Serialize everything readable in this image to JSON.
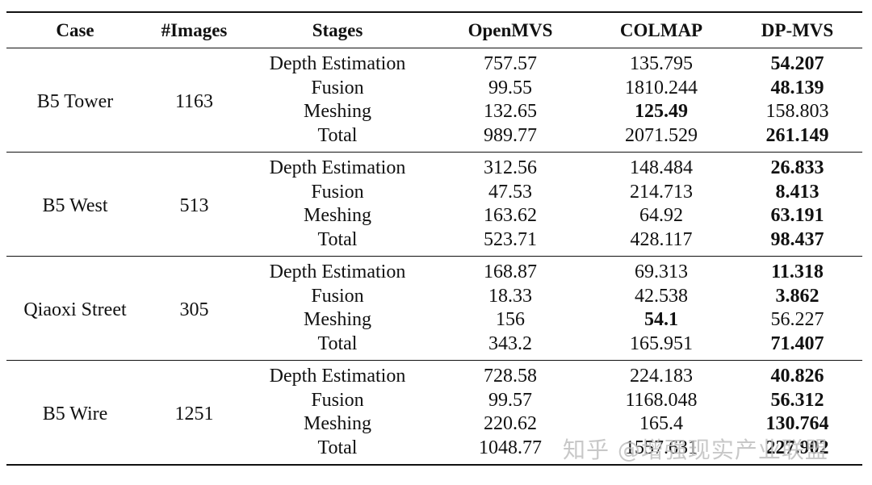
{
  "headers": [
    "Case",
    "#Images",
    "Stages",
    "OpenMVS",
    "COLMAP",
    "DP-MVS"
  ],
  "cases": [
    {
      "name": "B5 Tower",
      "images": "1163",
      "rows": [
        {
          "stage": "Depth Estimation",
          "openmvs": "757.57",
          "colmap": "135.795",
          "dpmvs": "54.207",
          "best": "dpmvs"
        },
        {
          "stage": "Fusion",
          "openmvs": "99.55",
          "colmap": "1810.244",
          "dpmvs": "48.139",
          "best": "dpmvs"
        },
        {
          "stage": "Meshing",
          "openmvs": "132.65",
          "colmap": "125.49",
          "dpmvs": "158.803",
          "best": "colmap"
        },
        {
          "stage": "Total",
          "openmvs": "989.77",
          "colmap": "2071.529",
          "dpmvs": "261.149",
          "best": "dpmvs"
        }
      ]
    },
    {
      "name": "B5 West",
      "images": "513",
      "rows": [
        {
          "stage": "Depth Estimation",
          "openmvs": "312.56",
          "colmap": "148.484",
          "dpmvs": "26.833",
          "best": "dpmvs"
        },
        {
          "stage": "Fusion",
          "openmvs": "47.53",
          "colmap": "214.713",
          "dpmvs": "8.413",
          "best": "dpmvs"
        },
        {
          "stage": "Meshing",
          "openmvs": "163.62",
          "colmap": "64.92",
          "dpmvs": "63.191",
          "best": "dpmvs"
        },
        {
          "stage": "Total",
          "openmvs": "523.71",
          "colmap": "428.117",
          "dpmvs": "98.437",
          "best": "dpmvs"
        }
      ]
    },
    {
      "name": "Qiaoxi Street",
      "images": "305",
      "rows": [
        {
          "stage": "Depth Estimation",
          "openmvs": "168.87",
          "colmap": "69.313",
          "dpmvs": "11.318",
          "best": "dpmvs"
        },
        {
          "stage": "Fusion",
          "openmvs": "18.33",
          "colmap": "42.538",
          "dpmvs": "3.862",
          "best": "dpmvs"
        },
        {
          "stage": "Meshing",
          "openmvs": "156",
          "colmap": "54.1",
          "dpmvs": "56.227",
          "best": "colmap"
        },
        {
          "stage": "Total",
          "openmvs": "343.2",
          "colmap": "165.951",
          "dpmvs": "71.407",
          "best": "dpmvs"
        }
      ]
    },
    {
      "name": "B5 Wire",
      "images": "1251",
      "rows": [
        {
          "stage": "Depth Estimation",
          "openmvs": "728.58",
          "colmap": "224.183",
          "dpmvs": "40.826",
          "best": "dpmvs"
        },
        {
          "stage": "Fusion",
          "openmvs": "99.57",
          "colmap": "1168.048",
          "dpmvs": "56.312",
          "best": "dpmvs"
        },
        {
          "stage": "Meshing",
          "openmvs": "220.62",
          "colmap": "165.4",
          "dpmvs": "130.764",
          "best": "dpmvs"
        },
        {
          "stage": "Total",
          "openmvs": "1048.77",
          "colmap": "1557.631",
          "dpmvs": "227.902",
          "best": "dpmvs"
        }
      ]
    }
  ],
  "watermark": "知乎 @增强现实产业联盟"
}
